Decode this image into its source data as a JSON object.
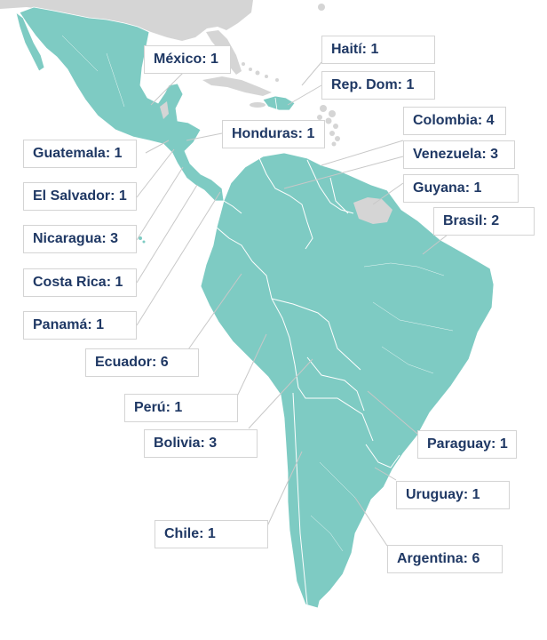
{
  "colors": {
    "land": "#7ecbc3",
    "other_land": "#d5d5d5",
    "border": "#ffffff",
    "leader": "#c8c8c8",
    "label_text": "#1f3864",
    "label_border": "#d4d4d4"
  },
  "labels": {
    "mexico": "México: 1",
    "haiti": "Haití: 1",
    "rep_dom": "Rep. Dom: 1",
    "honduras": "Honduras: 1",
    "colombia": "Colombia: 4",
    "venezuela": "Venezuela: 3",
    "guyana": "Guyana: 1",
    "brasil": "Brasil: 2",
    "guatemala": "Guatemala: 1",
    "el_salvador": "El Salvador: 1",
    "nicaragua": "Nicaragua: 3",
    "costa_rica": "Costa Rica: 1",
    "panama": "Panamá:  1",
    "ecuador": "Ecuador: 6",
    "peru": "Perú: 1",
    "bolivia": "Bolivia: 3",
    "paraguay": "Paraguay: 1",
    "uruguay": "Uruguay: 1",
    "chile": "Chile: 1",
    "argentina": "Argentina: 6"
  }
}
